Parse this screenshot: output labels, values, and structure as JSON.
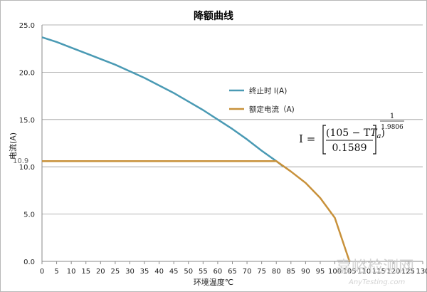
{
  "chart_data": {
    "type": "line",
    "title": "降额曲线",
    "xlabel": "环境温度℃",
    "ylabel": "电流(A)",
    "xlim": [
      0,
      130
    ],
    "ylim": [
      0,
      25
    ],
    "x_ticks": [
      "0",
      "5",
      "10",
      "15",
      "20",
      "25",
      "30",
      "35",
      "40",
      "45",
      "50",
      "55",
      "60",
      "65",
      "70",
      "75",
      "80",
      "85",
      "90",
      "95",
      "100",
      "105",
      "110",
      "115",
      "120",
      "125",
      "130"
    ],
    "y_ticks": [
      "0.0",
      "5.0",
      "10.0",
      "15.0",
      "20.0",
      "25.0"
    ],
    "grid": true,
    "legend_position": "center-right",
    "series": [
      {
        "name": "终止时 I(A)",
        "color": "#4a9ab4",
        "x": [
          0,
          5,
          10,
          15,
          20,
          25,
          30,
          35,
          40,
          45,
          50,
          55,
          60,
          65,
          70,
          75,
          80,
          82.5
        ],
        "y": [
          23.7,
          23.2,
          22.6,
          22.0,
          21.4,
          20.8,
          20.1,
          19.4,
          18.6,
          17.8,
          16.9,
          16.0,
          15.0,
          14.0,
          12.9,
          11.7,
          10.6,
          10.0
        ]
      },
      {
        "name": "额定电流（A)",
        "color": "#c8913a",
        "x": [
          0,
          5,
          10,
          15,
          20,
          25,
          30,
          35,
          40,
          45,
          50,
          55,
          60,
          65,
          70,
          75,
          80,
          85,
          90,
          95,
          100,
          105
        ],
        "y": [
          10.6,
          10.6,
          10.6,
          10.6,
          10.6,
          10.6,
          10.6,
          10.6,
          10.6,
          10.6,
          10.6,
          10.6,
          10.6,
          10.6,
          10.6,
          10.6,
          10.6,
          9.5,
          8.3,
          6.7,
          4.6,
          0.0
        ]
      }
    ],
    "annotation": "10.9",
    "formula": {
      "lhs": "I =",
      "numerator": "(105 − T",
      "subscript": "a",
      "numerator_close": ")",
      "denominator": "0.1589",
      "exp_numerator": "1",
      "exp_denominator": "1.9806"
    }
  },
  "watermark": {
    "main": "嘉峪检测网",
    "url": "AnyTesting.com"
  }
}
